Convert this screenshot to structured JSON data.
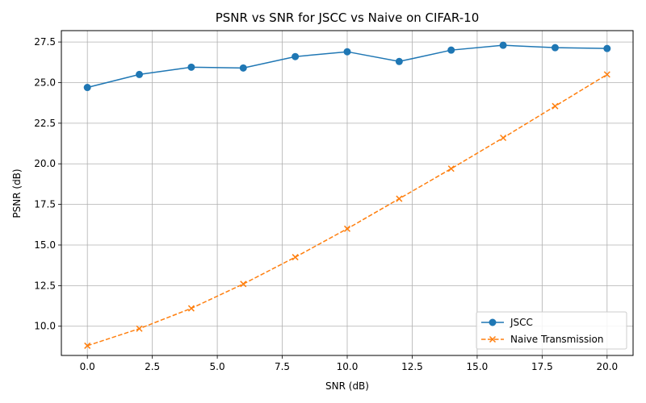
{
  "chart_data": {
    "type": "line",
    "title": "PSNR vs SNR for JSCC vs Naive on CIFAR-10",
    "xlabel": "SNR (dB)",
    "ylabel": "PSNR (dB)",
    "xlim": [
      -1.0,
      21.0
    ],
    "ylim": [
      8.2,
      28.2
    ],
    "x_ticks": [
      0.0,
      2.5,
      5.0,
      7.5,
      10.0,
      12.5,
      15.0,
      17.5,
      20.0
    ],
    "x_tick_labels": [
      "0.0",
      "2.5",
      "5.0",
      "7.5",
      "10.0",
      "12.5",
      "15.0",
      "17.5",
      "20.0"
    ],
    "y_ticks": [
      10.0,
      12.5,
      15.0,
      17.5,
      20.0,
      22.5,
      25.0,
      27.5
    ],
    "y_tick_labels": [
      "10.0",
      "12.5",
      "15.0",
      "17.5",
      "20.0",
      "22.5",
      "25.0",
      "27.5"
    ],
    "grid": true,
    "legend_position": "lower-right",
    "x": [
      0,
      2,
      4,
      6,
      8,
      10,
      12,
      14,
      16,
      18,
      20
    ],
    "series": [
      {
        "name": "JSCC",
        "values": [
          24.7,
          25.5,
          25.95,
          25.9,
          26.6,
          26.9,
          26.3,
          27.0,
          27.3,
          27.15,
          27.1
        ],
        "color": "#1f77b4",
        "marker": "circle",
        "linestyle": "solid"
      },
      {
        "name": "Naive Transmission",
        "values": [
          8.8,
          9.85,
          11.1,
          12.6,
          14.25,
          16.0,
          17.85,
          19.7,
          21.6,
          23.55,
          25.5
        ],
        "color": "#ff7f0e",
        "marker": "x",
        "linestyle": "dashed"
      }
    ]
  }
}
